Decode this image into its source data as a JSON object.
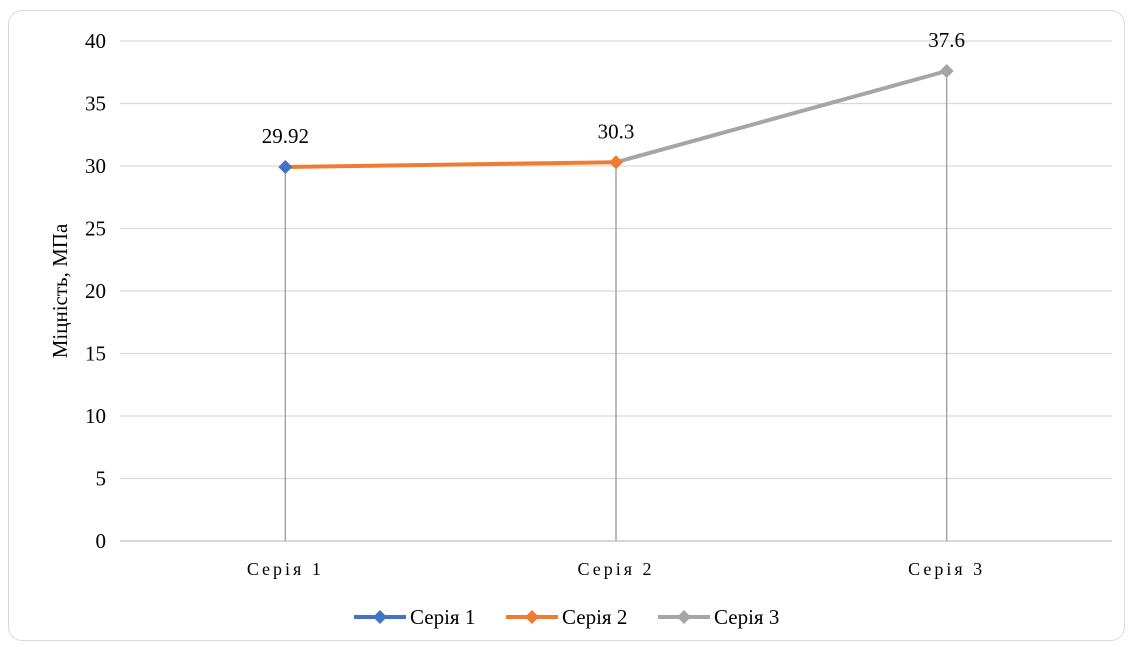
{
  "chart_data": {
    "type": "line",
    "categories": [
      "Серія 1",
      "Серія 2",
      "Серія 3"
    ],
    "ylabel": "Міцність, МПа",
    "ylim": [
      0,
      40
    ],
    "yticks": [
      0,
      5,
      10,
      15,
      20,
      25,
      30,
      35,
      40
    ],
    "grid": true,
    "legend_position": "bottom",
    "drop_lines": true,
    "series": [
      {
        "name": "Серія 1",
        "color": "#4472c4",
        "points": [
          {
            "x": "Серія 1",
            "y": 29.92
          }
        ]
      },
      {
        "name": "Серія 2",
        "color": "#ed7d31",
        "points": [
          {
            "x": "Серія 1",
            "y": 29.92
          },
          {
            "x": "Серія 2",
            "y": 30.3
          }
        ]
      },
      {
        "name": "Серія 3",
        "color": "#a5a5a5",
        "points": [
          {
            "x": "Серія 2",
            "y": 30.3
          },
          {
            "x": "Серія 3",
            "y": 37.6
          }
        ]
      }
    ],
    "data_labels": [
      {
        "x": "Серія 1",
        "y": 29.92,
        "text": "29.92"
      },
      {
        "x": "Серія 2",
        "y": 30.3,
        "text": "30.3"
      },
      {
        "x": "Серія 3",
        "y": 37.6,
        "text": "37.6"
      }
    ]
  }
}
